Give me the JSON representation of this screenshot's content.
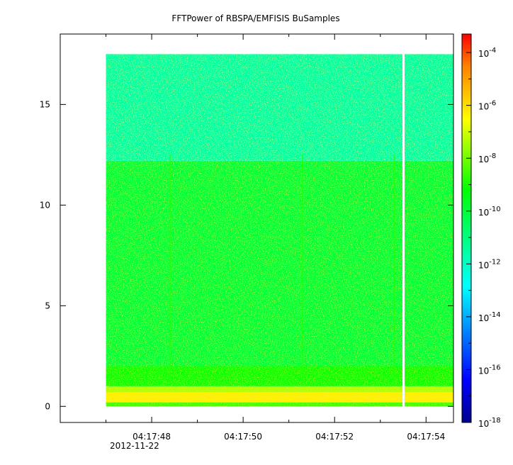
{
  "chart_data": {
    "type": "heatmap",
    "title": "FFTPower of RBSPA/EMFISIS  BuSamples",
    "xlabel": "",
    "ylabel": "",
    "x_tick_labels": [
      "04:17:48",
      "04:17:50",
      "04:17:52",
      "04:17:54"
    ],
    "x_tick_seconds": [
      48,
      50,
      52,
      54
    ],
    "x_date_label": "2012-11-22",
    "x_range_seconds": [
      46.0,
      54.6
    ],
    "data_x_range_seconds": [
      47.0,
      54.6
    ],
    "data_gap_seconds": 53.5,
    "y_ticks": [
      0,
      5,
      10,
      15
    ],
    "y_range": [
      -0.8,
      18.5
    ],
    "data_y_range": [
      0,
      17.5
    ],
    "colorbar": {
      "tick_exponents": [
        -4,
        -6,
        -8,
        -10,
        -12,
        -14,
        -16,
        -18
      ],
      "tick_base": "10",
      "range_exponent": [
        -18,
        -3.3
      ]
    },
    "spectrogram_bands": [
      {
        "y_from": 0.0,
        "y_to": 0.2,
        "level_exponent": -8.5
      },
      {
        "y_from": 0.2,
        "y_to": 0.7,
        "level_exponent": -6.3
      },
      {
        "y_from": 0.7,
        "y_to": 1.0,
        "level_exponent": -7.3
      },
      {
        "y_from": 1.0,
        "y_to": 2.0,
        "level_exponent": -9.0
      },
      {
        "y_from": 2.0,
        "y_to": 12.2,
        "level_exponent": -10.0
      },
      {
        "y_from": 12.2,
        "y_to": 17.5,
        "level_exponent": -11.5
      }
    ],
    "bright_vertical_streaks_seconds": [
      48.4,
      51.3,
      53.3
    ],
    "grid": false,
    "legend": "colorbar-right"
  }
}
